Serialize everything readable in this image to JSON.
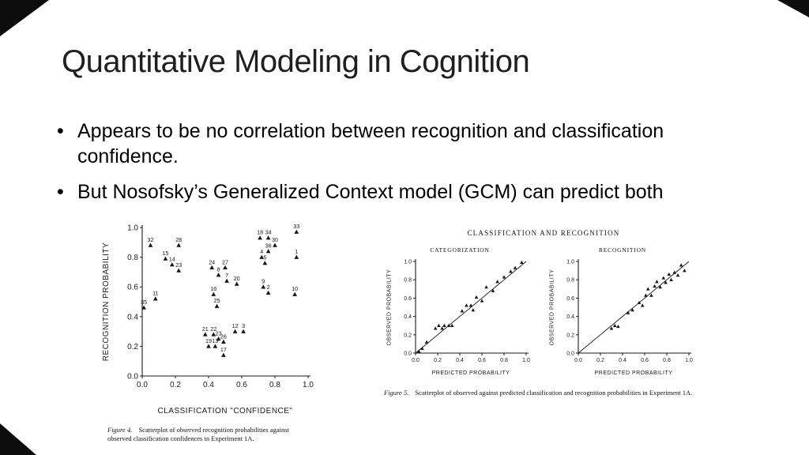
{
  "slide": {
    "title": "Quantitative Modeling in Cognition",
    "bullets": [
      "Appears to be no correlation between recognition and classification confidence.",
      "But Nosofsky’s Generalized Context model (GCM) can predict both"
    ]
  },
  "figure4": {
    "caption_label": "Figure 4.",
    "caption_text": "Scatterplot of observed recognition probabilities against observed classification confidences in Experiment 1A."
  },
  "figure5": {
    "header": "CLASSIFICATION AND RECOGNITION",
    "caption_label": "Figure 5.",
    "caption_text": "Scatterplot of observed against predicted classification and recognition probabilities in Experiment 1A."
  },
  "chart_data": [
    {
      "id": "figure4-scatter",
      "type": "scatter",
      "subtitle": "",
      "xlabel": "CLASSIFICATION \"CONFIDENCE\"",
      "ylabel": "RECOGNITION PROBABILITY",
      "xlim": [
        0,
        1
      ],
      "ylim": [
        0,
        1
      ],
      "xticks": [
        "0.0",
        "0.2",
        "0.4",
        "0.6",
        "0.8",
        "1.0"
      ],
      "yticks": [
        "0.0",
        "0.2",
        "0.4",
        "0.6",
        "0.8",
        "1.0"
      ],
      "diagonal": false,
      "marker": "triangle",
      "legend": "none",
      "grid": false,
      "points": [
        {
          "x": 0.05,
          "y": 0.88,
          "label": "32"
        },
        {
          "x": 0.22,
          "y": 0.88,
          "label": "28"
        },
        {
          "x": 0.14,
          "y": 0.79,
          "label": "15"
        },
        {
          "x": 0.18,
          "y": 0.75,
          "label": "14"
        },
        {
          "x": 0.22,
          "y": 0.71,
          "label": "23"
        },
        {
          "x": 0.71,
          "y": 0.93,
          "label": "18"
        },
        {
          "x": 0.76,
          "y": 0.93,
          "label": "34"
        },
        {
          "x": 0.93,
          "y": 0.97,
          "label": "33"
        },
        {
          "x": 0.8,
          "y": 0.88,
          "label": "30"
        },
        {
          "x": 0.76,
          "y": 0.84,
          "label": "36"
        },
        {
          "x": 0.72,
          "y": 0.8,
          "label": "4"
        },
        {
          "x": 0.74,
          "y": 0.76,
          "label": "5"
        },
        {
          "x": 0.93,
          "y": 0.8,
          "label": "1"
        },
        {
          "x": 0.42,
          "y": 0.73,
          "label": "24"
        },
        {
          "x": 0.5,
          "y": 0.73,
          "label": "27"
        },
        {
          "x": 0.46,
          "y": 0.68,
          "label": "8"
        },
        {
          "x": 0.51,
          "y": 0.64,
          "label": "7"
        },
        {
          "x": 0.57,
          "y": 0.62,
          "label": "20"
        },
        {
          "x": 0.73,
          "y": 0.6,
          "label": "9"
        },
        {
          "x": 0.76,
          "y": 0.56,
          "label": "2"
        },
        {
          "x": 0.92,
          "y": 0.55,
          "label": "10"
        },
        {
          "x": 0.08,
          "y": 0.52,
          "label": "11"
        },
        {
          "x": 0.01,
          "y": 0.46,
          "label": "35"
        },
        {
          "x": 0.43,
          "y": 0.55,
          "label": "16"
        },
        {
          "x": 0.45,
          "y": 0.47,
          "label": "25"
        },
        {
          "x": 0.38,
          "y": 0.28,
          "label": "21"
        },
        {
          "x": 0.43,
          "y": 0.28,
          "label": "22"
        },
        {
          "x": 0.56,
          "y": 0.3,
          "label": "12"
        },
        {
          "x": 0.61,
          "y": 0.3,
          "label": "3"
        },
        {
          "x": 0.46,
          "y": 0.25,
          "label": "23"
        },
        {
          "x": 0.4,
          "y": 0.2,
          "label": "19"
        },
        {
          "x": 0.44,
          "y": 0.2,
          "label": "13"
        },
        {
          "x": 0.49,
          "y": 0.23,
          "label": "26"
        },
        {
          "x": 0.49,
          "y": 0.14,
          "label": "17"
        }
      ]
    },
    {
      "id": "figure5-categorization",
      "type": "scatter",
      "subtitle": "CATEGORIZATION",
      "xlabel": "PREDICTED PROBABILITY",
      "ylabel": "OBSERVED PROBABILITY",
      "xlim": [
        0,
        1
      ],
      "ylim": [
        0,
        1
      ],
      "xticks": [
        "0.0",
        "0.2",
        "0.4",
        "0.6",
        "0.8",
        "1.0"
      ],
      "yticks": [
        "0.0",
        "0.2",
        "0.4",
        "0.6",
        "0.8",
        "1.0"
      ],
      "diagonal": true,
      "marker": "triangle",
      "legend": "none",
      "grid": false,
      "points": [
        {
          "x": 0.03,
          "y": 0.02
        },
        {
          "x": 0.06,
          "y": 0.05
        },
        {
          "x": 0.1,
          "y": 0.12
        },
        {
          "x": 0.18,
          "y": 0.27
        },
        {
          "x": 0.21,
          "y": 0.3
        },
        {
          "x": 0.24,
          "y": 0.27
        },
        {
          "x": 0.26,
          "y": 0.3
        },
        {
          "x": 0.3,
          "y": 0.3
        },
        {
          "x": 0.33,
          "y": 0.3
        },
        {
          "x": 0.42,
          "y": 0.46
        },
        {
          "x": 0.46,
          "y": 0.52
        },
        {
          "x": 0.5,
          "y": 0.52
        },
        {
          "x": 0.52,
          "y": 0.47
        },
        {
          "x": 0.55,
          "y": 0.61
        },
        {
          "x": 0.6,
          "y": 0.57
        },
        {
          "x": 0.64,
          "y": 0.72
        },
        {
          "x": 0.7,
          "y": 0.68
        },
        {
          "x": 0.74,
          "y": 0.78
        },
        {
          "x": 0.8,
          "y": 0.83
        },
        {
          "x": 0.86,
          "y": 0.89
        },
        {
          "x": 0.9,
          "y": 0.93
        },
        {
          "x": 0.96,
          "y": 0.99
        }
      ]
    },
    {
      "id": "figure5-recognition",
      "type": "scatter",
      "subtitle": "RECOGNITION",
      "xlabel": "PREDICTED PROBABILITY",
      "ylabel": "OBSERVED PROBABILITY",
      "xlim": [
        0,
        1
      ],
      "ylim": [
        0,
        1
      ],
      "xticks": [
        "0.0",
        "0.2",
        "0.4",
        "0.6",
        "0.8",
        "1.0"
      ],
      "yticks": [
        "0.0",
        "0.2",
        "0.4",
        "0.6",
        "0.8",
        "1.0"
      ],
      "diagonal": true,
      "marker": "triangle",
      "legend": "none",
      "grid": false,
      "points": [
        {
          "x": 0.3,
          "y": 0.27
        },
        {
          "x": 0.33,
          "y": 0.3
        },
        {
          "x": 0.36,
          "y": 0.29
        },
        {
          "x": 0.45,
          "y": 0.44
        },
        {
          "x": 0.49,
          "y": 0.47
        },
        {
          "x": 0.55,
          "y": 0.55
        },
        {
          "x": 0.58,
          "y": 0.52
        },
        {
          "x": 0.61,
          "y": 0.63
        },
        {
          "x": 0.63,
          "y": 0.7
        },
        {
          "x": 0.66,
          "y": 0.63
        },
        {
          "x": 0.69,
          "y": 0.73
        },
        {
          "x": 0.71,
          "y": 0.78
        },
        {
          "x": 0.74,
          "y": 0.72
        },
        {
          "x": 0.77,
          "y": 0.82
        },
        {
          "x": 0.79,
          "y": 0.77
        },
        {
          "x": 0.82,
          "y": 0.86
        },
        {
          "x": 0.84,
          "y": 0.8
        },
        {
          "x": 0.87,
          "y": 0.88
        },
        {
          "x": 0.9,
          "y": 0.85
        },
        {
          "x": 0.93,
          "y": 0.96
        },
        {
          "x": 0.96,
          "y": 0.9
        }
      ]
    }
  ]
}
